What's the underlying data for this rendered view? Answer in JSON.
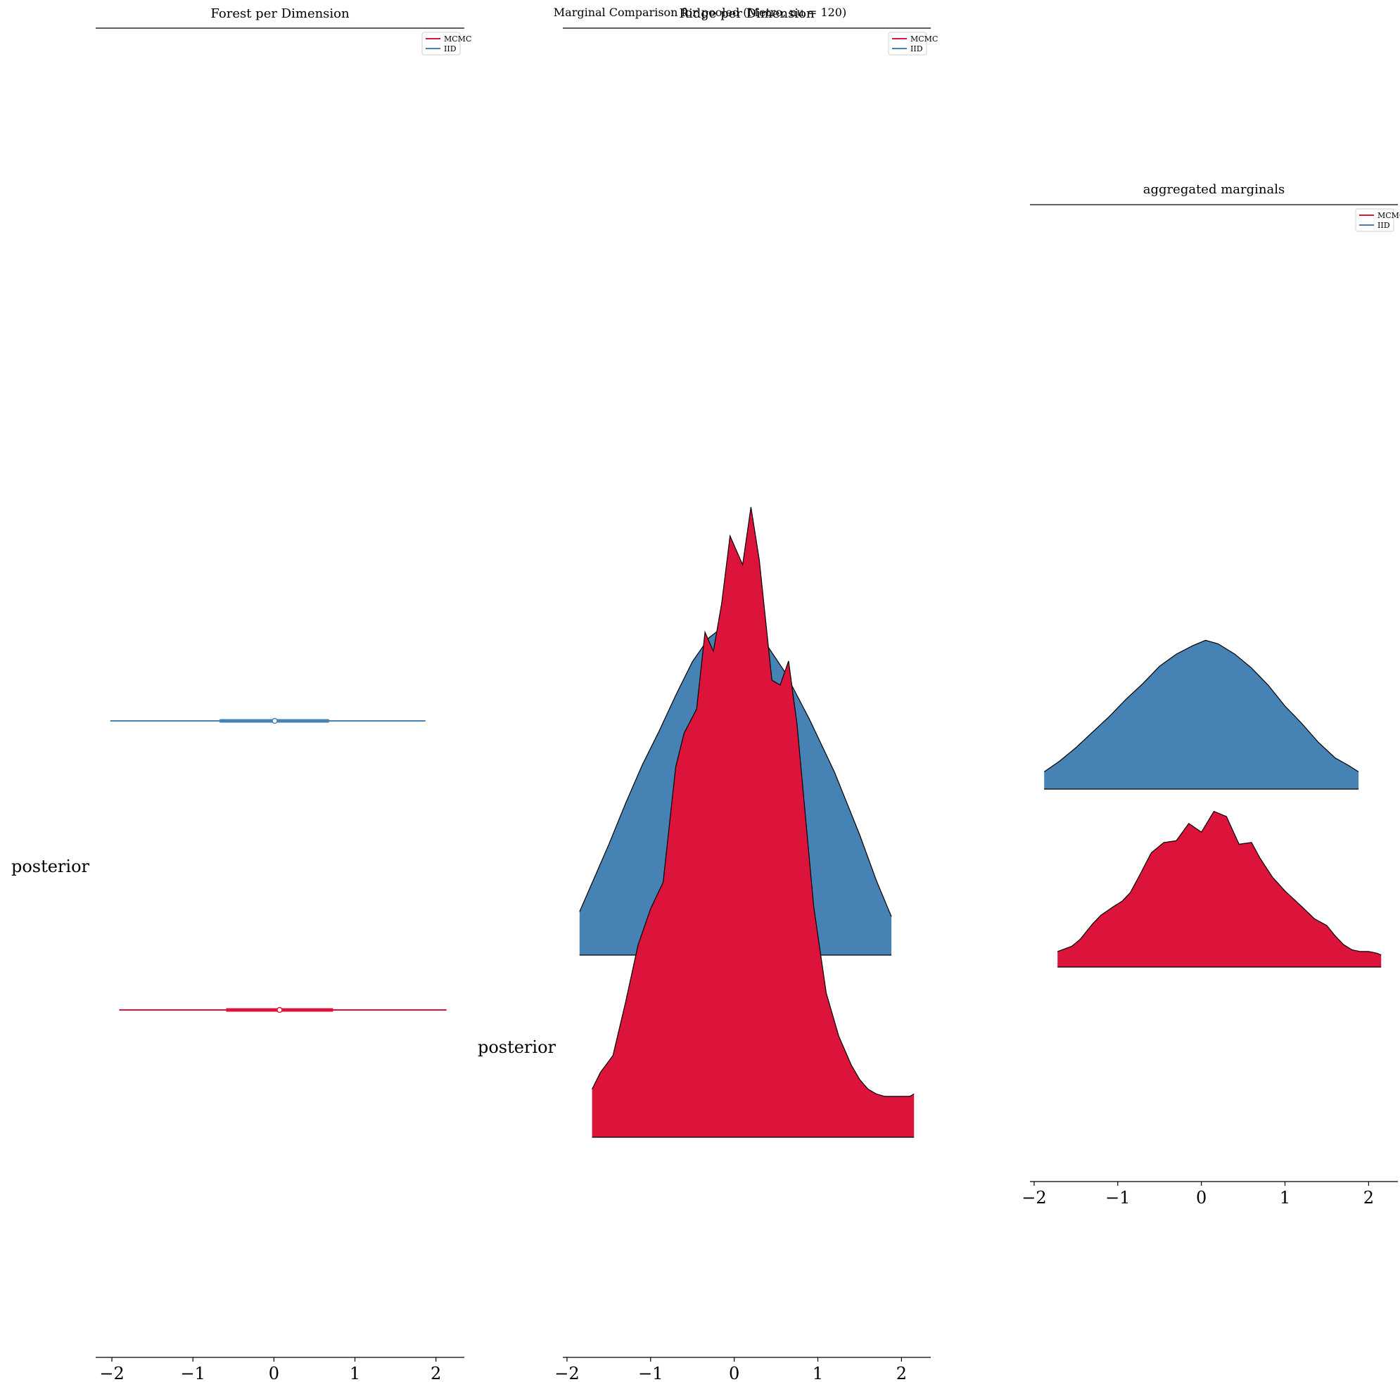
{
  "figure": {
    "suptitle": "Marginal Comparison for pooled (Metro, nu = 120)"
  },
  "colors": {
    "mcmc": "#dc143c",
    "iid": "#4682b4",
    "outline": "#000000",
    "background": "#ffffff"
  },
  "chart_data": [
    {
      "type": "forest",
      "title": "Forest per Dimension",
      "xlabel": "",
      "ylabel": "",
      "xlim": [
        -2.2,
        2.35
      ],
      "x_ticks": [
        -2,
        -1,
        0,
        1,
        2
      ],
      "x_tick_labels": [
        "−2",
        "−1",
        "0",
        "1",
        "2"
      ],
      "y_categories": [
        "posterior"
      ],
      "legend": {
        "placement": "top-right",
        "entries": [
          "MCMC",
          "IID"
        ]
      },
      "series": [
        {
          "name": "IID",
          "color": "#4682b4",
          "median": 0.01,
          "hdi_50": [
            -0.67,
            0.68
          ],
          "hdi_94": [
            -2.02,
            1.87
          ]
        },
        {
          "name": "MCMC",
          "color": "#dc143c",
          "median": 0.07,
          "hdi_50": [
            -0.59,
            0.73
          ],
          "hdi_94": [
            -1.91,
            2.13
          ]
        }
      ]
    },
    {
      "type": "ridge",
      "title": "Ridge per Dimension",
      "xlabel": "",
      "ylabel": "",
      "xlim": [
        -2.05,
        2.35
      ],
      "x_ticks": [
        -2,
        -1,
        0,
        1,
        2
      ],
      "x_tick_labels": [
        "−2",
        "−1",
        "0",
        "1",
        "2"
      ],
      "y_categories": [
        "posterior"
      ],
      "legend": {
        "placement": "top-right",
        "entries": [
          "MCMC",
          "IID"
        ]
      },
      "series": [
        {
          "name": "IID",
          "color": "#4682b4",
          "x": [
            -1.85,
            -1.7,
            -1.5,
            -1.3,
            -1.1,
            -0.9,
            -0.7,
            -0.5,
            -0.3,
            -0.15,
            0.0,
            0.08,
            0.2,
            0.35,
            0.6,
            0.9,
            1.2,
            1.5,
            1.7,
            1.88
          ],
          "density": [
            0.18,
            0.3,
            0.46,
            0.63,
            0.79,
            0.93,
            1.08,
            1.22,
            1.32,
            1.36,
            1.43,
            1.45,
            1.41,
            1.31,
            1.18,
            0.98,
            0.76,
            0.5,
            0.31,
            0.16
          ]
        },
        {
          "name": "MCMC",
          "color": "#dc143c",
          "x": [
            -1.7,
            -1.6,
            -1.45,
            -1.3,
            -1.15,
            -1.0,
            -0.85,
            -0.7,
            -0.6,
            -0.45,
            -0.35,
            -0.25,
            -0.15,
            -0.05,
            0.1,
            0.2,
            0.3,
            0.45,
            0.55,
            0.65,
            0.75,
            0.85,
            0.95,
            1.1,
            1.25,
            1.4,
            1.5,
            1.6,
            1.7,
            1.8,
            1.9,
            2.0,
            2.1,
            2.15
          ],
          "density": [
            0.2,
            0.27,
            0.34,
            0.56,
            0.8,
            0.95,
            1.06,
            1.54,
            1.68,
            1.78,
            2.1,
            2.02,
            2.22,
            2.5,
            2.38,
            2.62,
            2.4,
            1.9,
            1.88,
            1.98,
            1.72,
            1.34,
            0.96,
            0.6,
            0.42,
            0.3,
            0.24,
            0.2,
            0.18,
            0.17,
            0.17,
            0.17,
            0.17,
            0.18
          ]
        }
      ]
    },
    {
      "type": "ridge",
      "title": "aggregated marginals",
      "xlabel": "",
      "ylabel": "",
      "xlim": [
        -2.05,
        2.35
      ],
      "x_ticks": [
        -2,
        -1,
        0,
        1,
        2
      ],
      "x_tick_labels": [
        "−2",
        "−1",
        "0",
        "1",
        "2"
      ],
      "y_categories": [],
      "legend": {
        "placement": "top-right",
        "entries": [
          "MCMC",
          "IID"
        ]
      },
      "series": [
        {
          "name": "IID",
          "color": "#4682b4",
          "x": [
            -1.88,
            -1.7,
            -1.5,
            -1.3,
            -1.1,
            -0.9,
            -0.7,
            -0.5,
            -0.3,
            -0.1,
            0.05,
            0.2,
            0.4,
            0.6,
            0.8,
            1.0,
            1.2,
            1.4,
            1.6,
            1.75,
            1.88
          ],
          "density": [
            0.1,
            0.16,
            0.24,
            0.33,
            0.42,
            0.52,
            0.61,
            0.71,
            0.78,
            0.83,
            0.86,
            0.84,
            0.78,
            0.7,
            0.6,
            0.48,
            0.38,
            0.27,
            0.18,
            0.14,
            0.1
          ]
        },
        {
          "name": "MCMC",
          "color": "#dc143c",
          "x": [
            -1.72,
            -1.55,
            -1.45,
            -1.3,
            -1.2,
            -1.05,
            -0.95,
            -0.85,
            -0.75,
            -0.6,
            -0.45,
            -0.3,
            -0.15,
            0.0,
            0.15,
            0.3,
            0.45,
            0.6,
            0.7,
            0.85,
            1.0,
            1.2,
            1.35,
            1.5,
            1.6,
            1.7,
            1.8,
            1.9,
            2.0,
            2.1,
            2.15
          ],
          "density": [
            0.09,
            0.12,
            0.16,
            0.25,
            0.3,
            0.35,
            0.38,
            0.43,
            0.52,
            0.66,
            0.72,
            0.73,
            0.83,
            0.78,
            0.9,
            0.87,
            0.71,
            0.72,
            0.63,
            0.52,
            0.44,
            0.35,
            0.28,
            0.24,
            0.18,
            0.13,
            0.1,
            0.09,
            0.09,
            0.08,
            0.07
          ]
        }
      ]
    }
  ]
}
